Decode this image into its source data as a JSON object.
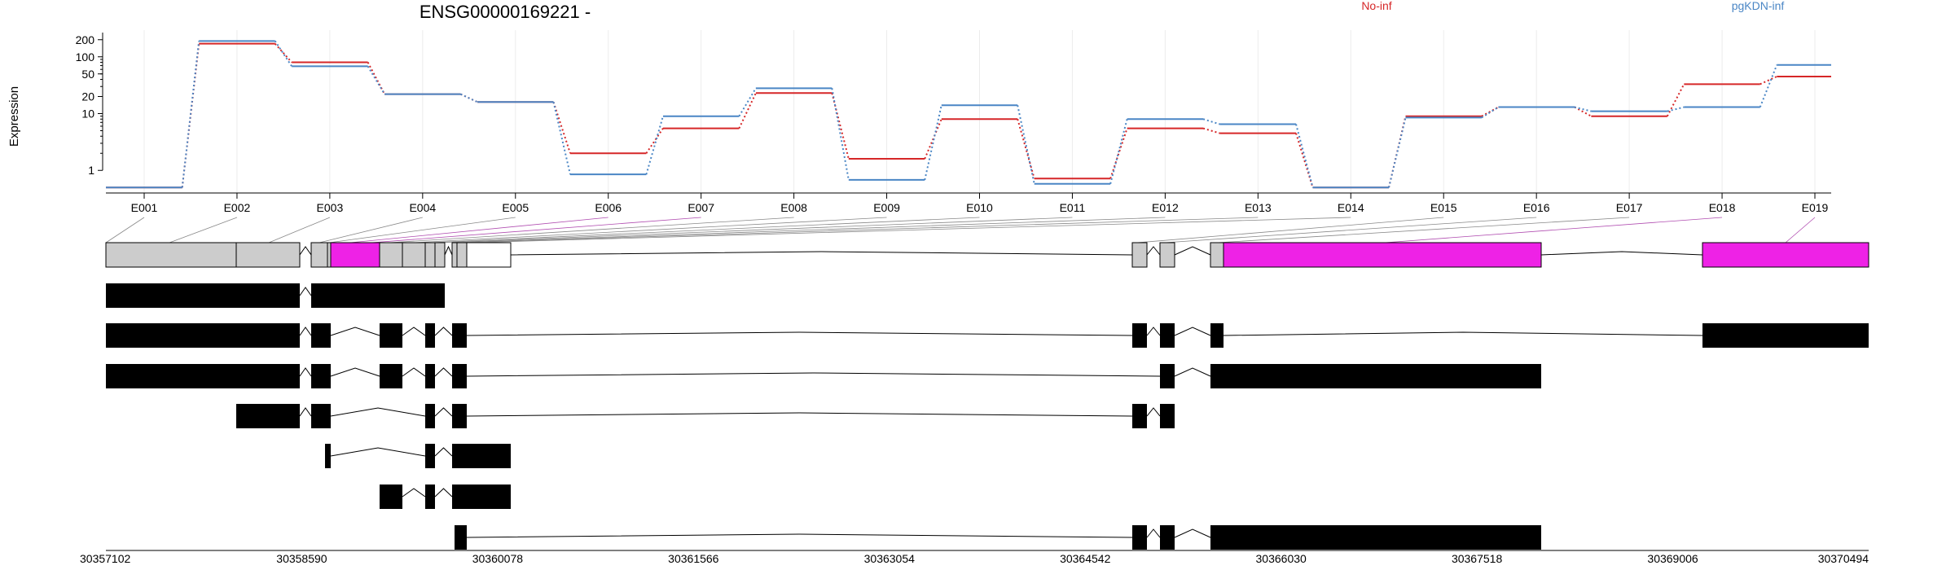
{
  "title": "ENSG00000169221 -",
  "ylabel": "Expression",
  "legend": [
    {
      "name": "No-inf",
      "color": "#d62728"
    },
    {
      "name": "pgKDN-inf",
      "color": "#4a86c5"
    }
  ],
  "chart_data": {
    "type": "line",
    "title": "ENSG00000169221 -",
    "ylabel": "Expression",
    "yscale": "log",
    "yticks": [
      1,
      10,
      20,
      50,
      100,
      200
    ],
    "ytick_labels": [
      "1",
      "10",
      "20",
      "50",
      "100",
      "200"
    ],
    "ylim": [
      0.4,
      250
    ],
    "categories": [
      "E001",
      "E002",
      "E003",
      "E004",
      "E005",
      "E006",
      "E007",
      "E008",
      "E009",
      "E010",
      "E011",
      "E012",
      "E013",
      "E014",
      "E015",
      "E016",
      "E017",
      "E018",
      "E019"
    ],
    "series": [
      {
        "name": "No-inf",
        "color": "#d62728",
        "values": [
          0.5,
          170,
          80,
          22,
          16,
          2.0,
          5.5,
          23,
          1.6,
          8,
          0.72,
          5.5,
          4.5,
          0.5,
          9,
          13,
          9,
          33,
          45
        ]
      },
      {
        "name": "pgKDN-inf",
        "color": "#4a86c5",
        "values": [
          0.5,
          190,
          68,
          22,
          16,
          0.85,
          9,
          28,
          0.68,
          14,
          0.58,
          8,
          6.5,
          0.5,
          8.5,
          13,
          11,
          13,
          72
        ]
      }
    ],
    "grid": "vertical",
    "gene_model": {
      "exon_highlight_color": "#ee22e6",
      "exon_color": "#cccccc",
      "genomic_axis_labels": [
        "30357102",
        "30358590",
        "30360078",
        "30361566",
        "30363054",
        "30364542",
        "30366030",
        "30367518",
        "30369006",
        "30370494"
      ],
      "transcript_count": 7
    }
  }
}
